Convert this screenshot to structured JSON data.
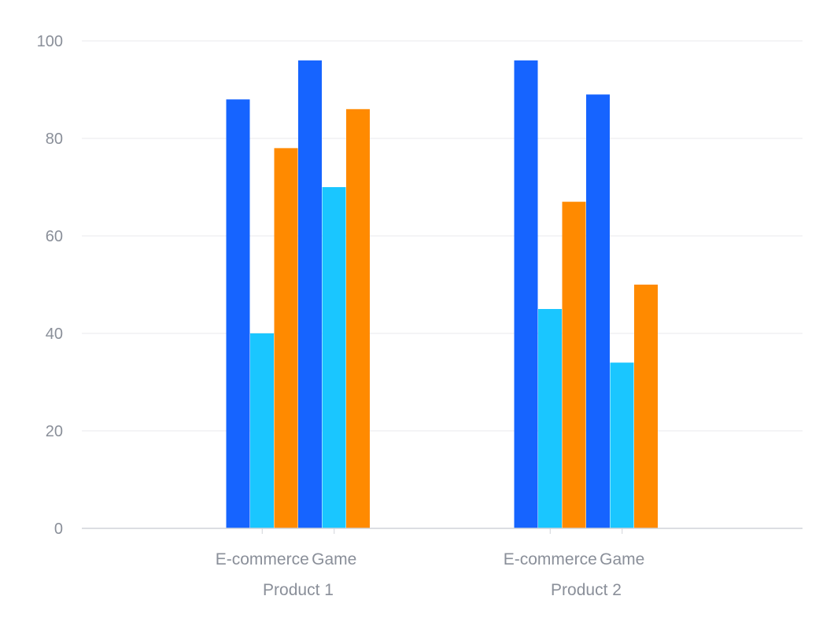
{
  "chart_data": {
    "type": "bar",
    "title": "",
    "xlabel": "",
    "ylabel": "",
    "ylim": [
      0,
      100
    ],
    "yticks": [
      0,
      20,
      40,
      60,
      80,
      100
    ],
    "grid": true,
    "legend": "none",
    "groups": [
      {
        "name": "Product 1",
        "categories": [
          {
            "name": "E-commerce",
            "values": [
              88,
              40,
              78
            ]
          },
          {
            "name": "Game",
            "values": [
              96,
              70,
              86
            ]
          }
        ]
      },
      {
        "name": "Product 2",
        "categories": [
          {
            "name": "E-commerce",
            "values": [
              96,
              45,
              67
            ]
          },
          {
            "name": "Game",
            "values": [
              89,
              34,
              50
            ]
          }
        ]
      }
    ],
    "colors": [
      "#1664ff",
      "#1ac6ff",
      "#ff8a00"
    ],
    "grid_color": "#e8e9ed",
    "axis_color": "#d0d3d9",
    "label_color": "#8a8f99"
  }
}
